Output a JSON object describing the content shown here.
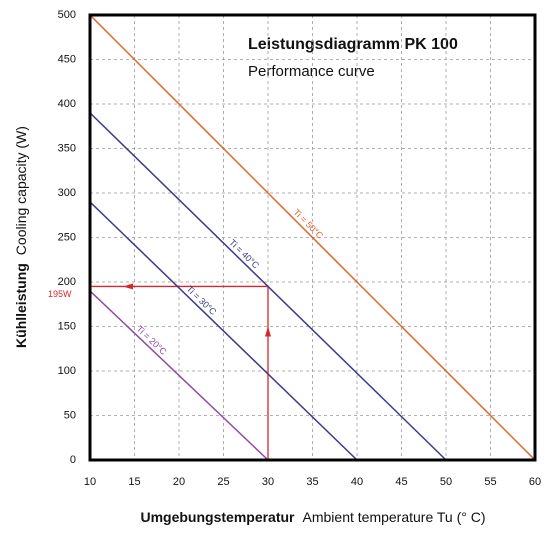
{
  "chart_data": {
    "type": "line",
    "title": "Leistungsdiagramm PK 100",
    "subtitle": "Performance curve",
    "y_label_bold": "Kühlleistung",
    "y_label": "Cooling capacity (W)",
    "x_label_bold": "Umgebungstemperatur",
    "x_label": "Ambient temperature Tu (° C)",
    "xlim": [
      10,
      60
    ],
    "ylim": [
      0,
      500
    ],
    "xticks": [
      10,
      15,
      20,
      25,
      30,
      35,
      40,
      45,
      50,
      55,
      60
    ],
    "yticks": [
      0,
      50,
      100,
      150,
      200,
      250,
      300,
      350,
      400,
      450,
      500
    ],
    "grid": true,
    "series": [
      {
        "name": "Ti = 50°C",
        "color": "#e0622a",
        "x": [
          10,
          60
        ],
        "values": [
          500,
          0
        ]
      },
      {
        "name": "Ti = 40°C",
        "color": "#3b3a8c",
        "x": [
          10,
          50
        ],
        "values": [
          390,
          0
        ]
      },
      {
        "name": "Ti = 30°C",
        "color": "#3b3a8c",
        "x": [
          10,
          40
        ],
        "values": [
          290,
          0
        ]
      },
      {
        "name": "Ti = 20°C",
        "color": "#8e4aa6",
        "x": [
          10,
          30
        ],
        "values": [
          190,
          0
        ]
      }
    ],
    "annotation": {
      "label": "195W",
      "x": 30,
      "y": 195,
      "color": "#d8262a"
    }
  }
}
